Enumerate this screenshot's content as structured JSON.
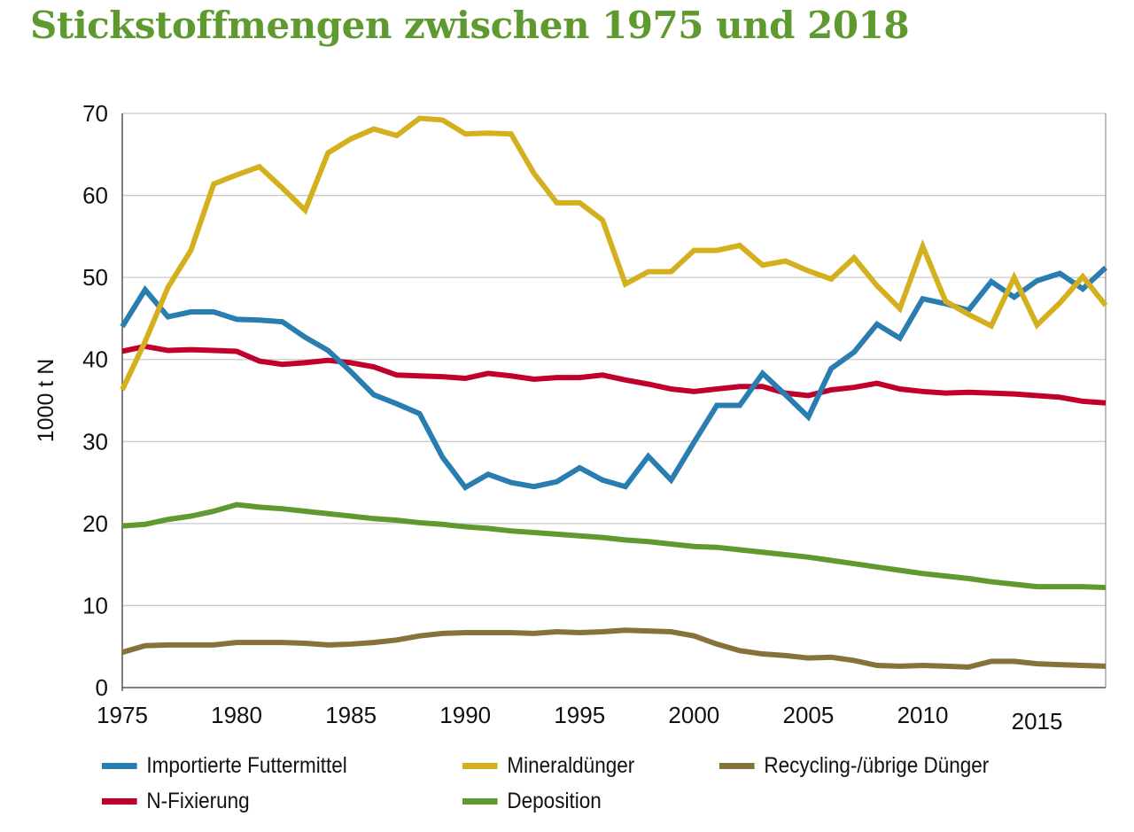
{
  "chart_data": {
    "type": "line",
    "title": "Stickstoffmengen zwischen 1975 und 2018",
    "xlabel": "",
    "ylabel": "1000 t N",
    "xlim": [
      1975,
      2018
    ],
    "ylim": [
      0,
      70
    ],
    "yticks": [
      0,
      10,
      20,
      30,
      40,
      50,
      60,
      70
    ],
    "xticks": [
      1975,
      1980,
      1985,
      1990,
      1995,
      2000,
      2005,
      2010,
      2015
    ],
    "grid": true,
    "legend_position": "bottom",
    "x": [
      1975,
      1976,
      1977,
      1978,
      1979,
      1980,
      1981,
      1982,
      1983,
      1984,
      1985,
      1986,
      1987,
      1988,
      1989,
      1990,
      1991,
      1992,
      1993,
      1994,
      1995,
      1996,
      1997,
      1998,
      1999,
      2000,
      2001,
      2002,
      2003,
      2004,
      2005,
      2006,
      2007,
      2008,
      2009,
      2010,
      2011,
      2012,
      2013,
      2014,
      2015,
      2016,
      2017,
      2018
    ],
    "series": [
      {
        "name": "Importierte Futtermittel",
        "color": "#2a7db0",
        "values": [
          44.0,
          48.5,
          45.2,
          45.8,
          45.8,
          44.9,
          44.8,
          44.6,
          42.7,
          41.1,
          38.5,
          35.7,
          34.6,
          33.4,
          28.1,
          24.4,
          26.0,
          25.0,
          24.5,
          25.1,
          26.8,
          25.3,
          24.5,
          28.2,
          25.3,
          29.9,
          34.4,
          34.4,
          38.3,
          35.7,
          33.0,
          38.9,
          40.9,
          44.3,
          42.6,
          47.4,
          46.8,
          46.0,
          49.5,
          47.6,
          49.6,
          50.5,
          48.6,
          51.2
        ]
      },
      {
        "name": "Mineraldünger",
        "color": "#d4b01e",
        "values": [
          36.3,
          42.2,
          48.8,
          53.3,
          61.4,
          62.5,
          63.5,
          60.9,
          58.2,
          65.2,
          66.9,
          68.1,
          67.3,
          69.4,
          69.2,
          67.5,
          67.6,
          67.5,
          62.7,
          59.1,
          59.1,
          57.0,
          49.2,
          50.7,
          50.7,
          53.3,
          53.3,
          53.9,
          51.5,
          52.0,
          50.8,
          49.8,
          52.4,
          49.0,
          46.2,
          53.8,
          47.1,
          45.5,
          44.1,
          50.0,
          44.2,
          46.9,
          50.1,
          46.6
        ]
      },
      {
        "name": "Recycling-/übrige Dünger",
        "color": "#86723a",
        "values": [
          4.3,
          5.1,
          5.2,
          5.2,
          5.2,
          5.5,
          5.5,
          5.5,
          5.4,
          5.2,
          5.3,
          5.5,
          5.8,
          6.3,
          6.6,
          6.7,
          6.7,
          6.7,
          6.6,
          6.8,
          6.7,
          6.8,
          7.0,
          6.9,
          6.8,
          6.3,
          5.3,
          4.5,
          4.1,
          3.9,
          3.6,
          3.7,
          3.3,
          2.7,
          2.6,
          2.7,
          2.6,
          2.5,
          3.2,
          3.2,
          2.9,
          2.8,
          2.7,
          2.6
        ]
      },
      {
        "name": "N-Fixierung",
        "color": "#c0002a",
        "values": [
          41.0,
          41.6,
          41.1,
          41.2,
          41.1,
          41.0,
          39.8,
          39.4,
          39.6,
          39.9,
          39.6,
          39.1,
          38.1,
          38.0,
          37.9,
          37.7,
          38.3,
          38.0,
          37.6,
          37.8,
          37.8,
          38.1,
          37.5,
          37.0,
          36.4,
          36.1,
          36.4,
          36.7,
          36.7,
          35.9,
          35.6,
          36.3,
          36.6,
          37.1,
          36.4,
          36.1,
          35.9,
          36.0,
          35.9,
          35.8,
          35.6,
          35.4,
          34.9,
          34.7
        ]
      },
      {
        "name": "Deposition",
        "color": "#5e9a2f",
        "values": [
          19.7,
          19.9,
          20.5,
          20.9,
          21.5,
          22.3,
          22.0,
          21.8,
          21.5,
          21.2,
          20.9,
          20.6,
          20.4,
          20.1,
          19.9,
          19.6,
          19.4,
          19.1,
          18.9,
          18.7,
          18.5,
          18.3,
          18.0,
          17.8,
          17.5,
          17.2,
          17.1,
          16.8,
          16.5,
          16.2,
          15.9,
          15.5,
          15.1,
          14.7,
          14.3,
          13.9,
          13.6,
          13.3,
          12.9,
          12.6,
          12.3,
          12.3,
          12.3,
          12.2
        ]
      }
    ]
  }
}
